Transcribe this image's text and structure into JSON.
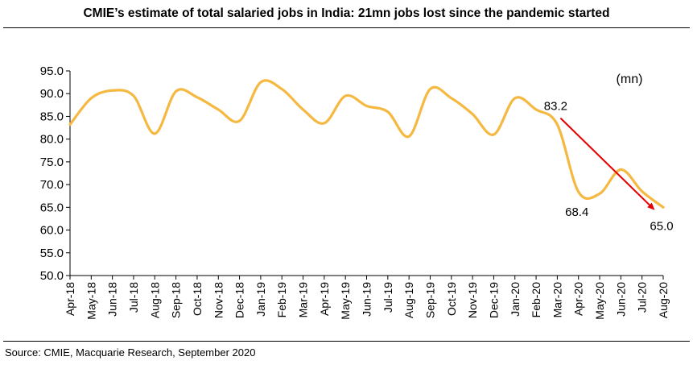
{
  "title": "CMIE’s estimate of total salaried jobs in India: 21mn jobs lost since the pandemic started",
  "source": "Source: CMIE, Macquarie Research, September 2020",
  "chart_data": {
    "type": "line",
    "unit_label": "(mn)",
    "categories": [
      "Apr-18",
      "May-18",
      "Jun-18",
      "Jul-18",
      "Aug-18",
      "Sep-18",
      "Oct-18",
      "Nov-18",
      "Dec-18",
      "Jan-19",
      "Feb-19",
      "Mar-19",
      "Apr-19",
      "May-19",
      "Jun-19",
      "Jul-19",
      "Aug-19",
      "Sep-19",
      "Oct-19",
      "Nov-19",
      "Dec-19",
      "Jan-20",
      "Feb-20",
      "Mar-20",
      "Apr-20",
      "May-20",
      "Jun-20",
      "Jul-20",
      "Aug-20"
    ],
    "series": [
      {
        "color": "#F5B841",
        "values": [
          83.2,
          89.0,
          90.7,
          89.5,
          81.2,
          90.5,
          89.2,
          86.5,
          84.0,
          92.5,
          91.0,
          86.5,
          83.5,
          89.5,
          87.3,
          86.0,
          80.6,
          91.0,
          89.0,
          85.5,
          81.0,
          89.0,
          86.5,
          83.2,
          68.4,
          68.0,
          73.3,
          68.5,
          65.0
        ]
      }
    ],
    "ylim": [
      50.0,
      95.0
    ],
    "yticks": [
      "95.0",
      "90.0",
      "85.0",
      "80.0",
      "75.0",
      "70.0",
      "65.0",
      "60.0",
      "55.0",
      "50.0"
    ],
    "annotations": [
      {
        "text": "83.2",
        "x": "Mar-20",
        "y": 83.2
      },
      {
        "text": "68.4",
        "x": "Apr-20",
        "y": 68.4
      },
      {
        "text": "65.0",
        "x": "Aug-20",
        "y": 65.0
      }
    ],
    "trend_arrow": {
      "from": {
        "x": "Mar-20",
        "y": 83.2
      },
      "to": {
        "x": "Aug-20",
        "y": 65.0
      },
      "color": "#E60000"
    },
    "grid": false,
    "legend": "none"
  }
}
